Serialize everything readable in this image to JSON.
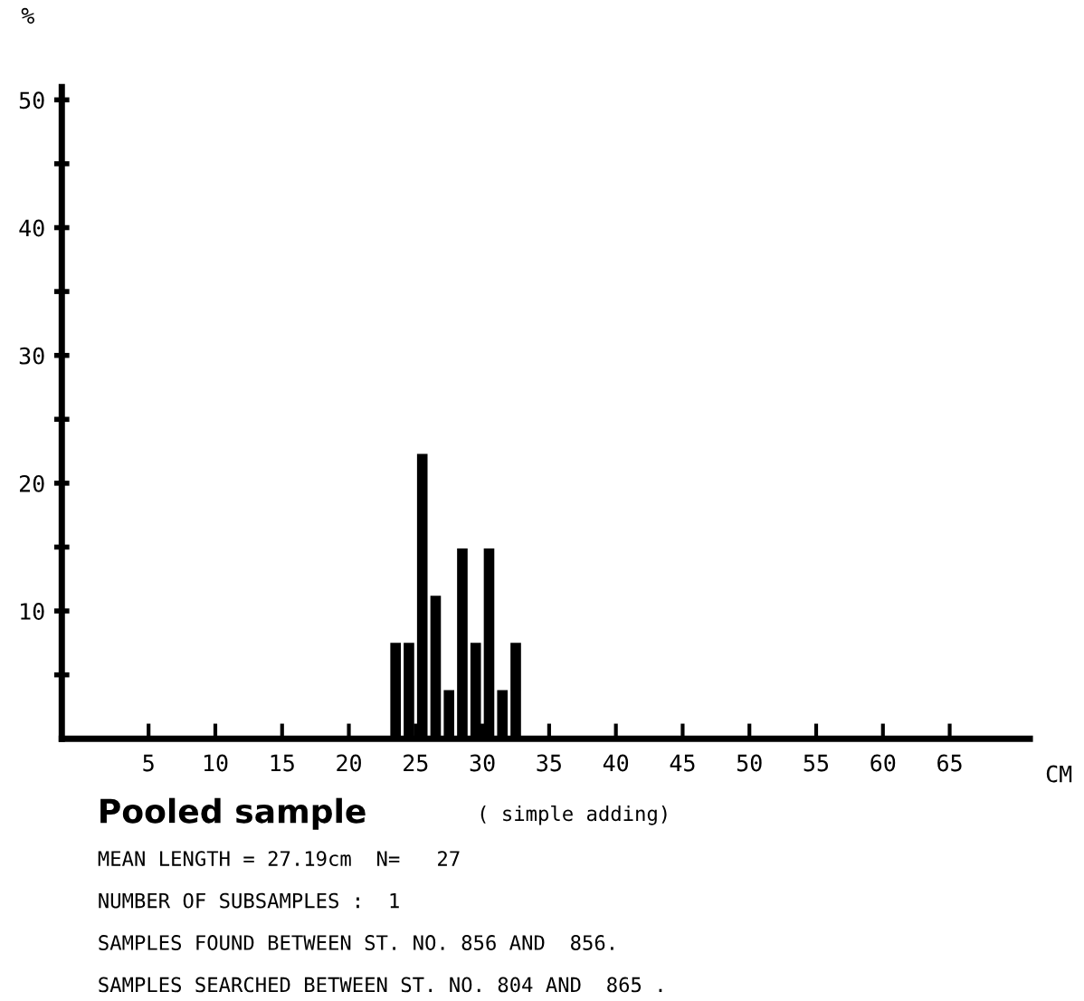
{
  "chart_data": {
    "type": "histogram",
    "title": "Pooled sample",
    "subtitle": "( simple adding)",
    "xlabel": "CM",
    "ylabel": "%",
    "bins": [
      0,
      1,
      2,
      3,
      4,
      5,
      6,
      7,
      8,
      9,
      10,
      11,
      12,
      13,
      14,
      15,
      16,
      17,
      18,
      19,
      20,
      21,
      22,
      23,
      24,
      25,
      26,
      27,
      28,
      29,
      30,
      31,
      32,
      33,
      34,
      35,
      36,
      37,
      38,
      39,
      40,
      41,
      42,
      43,
      44,
      45,
      46,
      47,
      48,
      49,
      50,
      51,
      52,
      53,
      54,
      55,
      56,
      57,
      58,
      59,
      60,
      61,
      62,
      63,
      64,
      65,
      66,
      67,
      68,
      69,
      70
    ],
    "values": [
      0,
      0,
      0,
      0,
      0,
      0,
      0,
      0,
      0,
      0,
      0,
      0,
      0,
      0,
      0,
      0,
      0,
      0,
      0,
      0,
      0,
      0,
      0,
      7.4,
      7.4,
      22.2,
      11.1,
      3.7,
      14.8,
      7.4,
      14.8,
      3.7,
      7.4,
      0,
      0,
      0,
      0,
      0,
      0,
      0,
      0,
      0,
      0,
      0,
      0,
      0,
      0,
      0,
      0,
      0,
      0,
      0,
      0,
      0,
      0,
      0,
      0,
      0,
      0,
      0,
      0,
      0,
      0,
      0,
      0,
      0,
      0,
      0,
      0,
      0
    ],
    "color": "#000000",
    "xlim": [
      -1.5,
      71
    ],
    "ylim": [
      0,
      51
    ],
    "xticks": [
      5,
      10,
      15,
      20,
      25,
      30,
      35,
      40,
      45,
      50,
      55,
      60,
      65
    ],
    "yticks": [
      {
        "value": 5,
        "label": null
      },
      10,
      {
        "value": 15,
        "label": null
      },
      20,
      {
        "value": 25,
        "label": null
      },
      30,
      {
        "value": 35,
        "label": null
      },
      40,
      {
        "value": 45,
        "label": null
      },
      50
    ],
    "grid": false,
    "legend": false,
    "annotations": [
      "MEAN LENGTH = 27.19cm  N=   27",
      "NUMBER OF SUBSAMPLES :  1",
      "SAMPLES FOUND BETWEEN ST. NO. 856 AND  856.",
      "SAMPLES SEARCHED BETWEEN ST. NO. 804 AND  865 ."
    ]
  }
}
